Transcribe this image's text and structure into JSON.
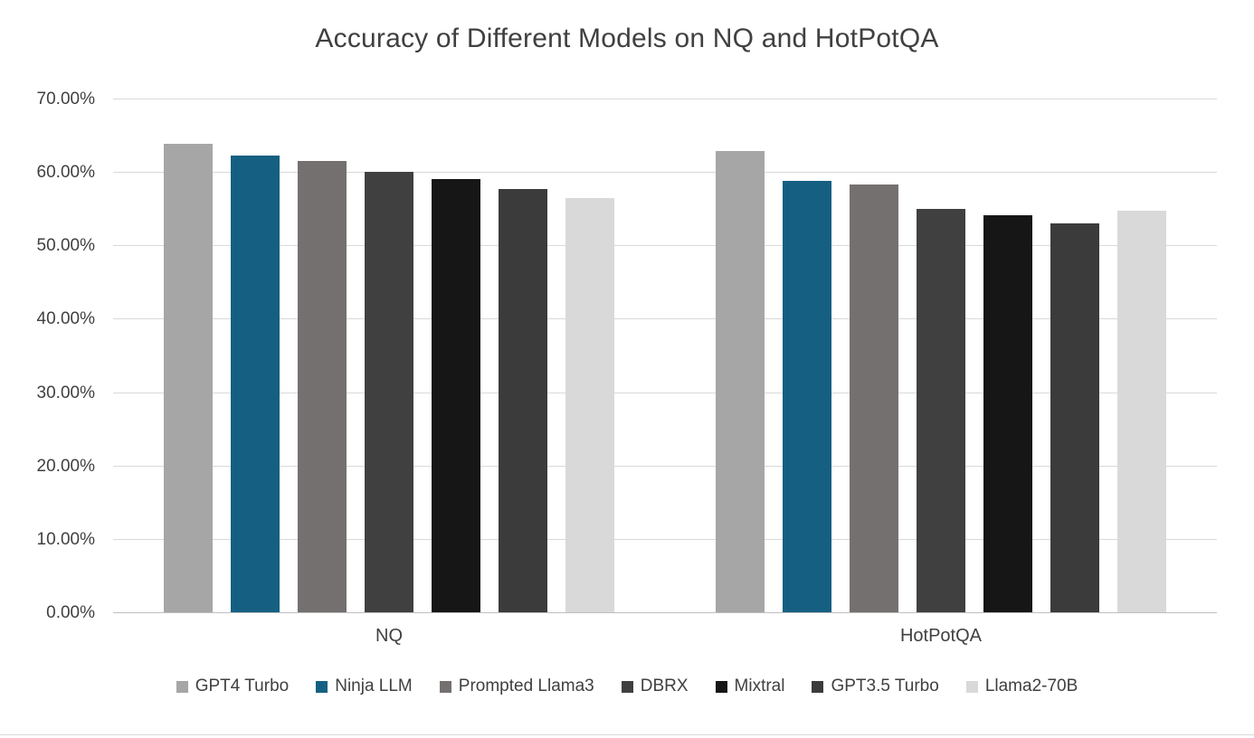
{
  "chart_data": {
    "type": "bar",
    "title": "Accuracy of Different Models on NQ and HotPotQA",
    "categories": [
      "NQ",
      "HotPotQA"
    ],
    "series": [
      {
        "name": "GPT4 Turbo",
        "color": "#a6a6a6",
        "values": [
          63.8,
          62.8
        ]
      },
      {
        "name": "Ninja LLM",
        "color": "#156082",
        "values": [
          62.2,
          58.8
        ]
      },
      {
        "name": "Prompted Llama3",
        "color": "#757070",
        "values": [
          61.5,
          58.3
        ]
      },
      {
        "name": "DBRX",
        "color": "#404040",
        "values": [
          60.0,
          55.0
        ]
      },
      {
        "name": "Mixtral",
        "color": "#171616",
        "values": [
          59.0,
          54.1
        ]
      },
      {
        "name": "GPT3.5 Turbo",
        "color": "#3b3b3b",
        "values": [
          57.7,
          53.0
        ]
      },
      {
        "name": "Llama2-70B",
        "color": "#d9d9d9",
        "values": [
          56.5,
          54.7
        ]
      }
    ],
    "ylim": [
      0,
      70
    ],
    "yticks": [
      {
        "value": 0,
        "label": "0.00%"
      },
      {
        "value": 10,
        "label": "10.00%"
      },
      {
        "value": 20,
        "label": "20.00%"
      },
      {
        "value": 30,
        "label": "30.00%"
      },
      {
        "value": 40,
        "label": "40.00%"
      },
      {
        "value": 50,
        "label": "50.00%"
      },
      {
        "value": 60,
        "label": "60.00%"
      },
      {
        "value": 70,
        "label": "70.00%"
      }
    ],
    "grid": true,
    "legend_position": "bottom"
  }
}
